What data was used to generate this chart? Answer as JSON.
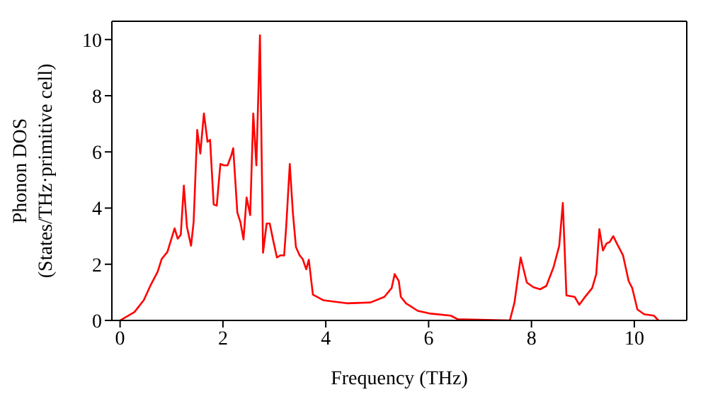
{
  "chart_data": {
    "type": "line",
    "xlabel": "Frequency (THz)",
    "ylabel": "Phonon DOS\n(States/THz·primitive cell)",
    "x": [
      0,
      0.28,
      0.46,
      0.6,
      0.73,
      0.81,
      0.92,
      1.06,
      1.12,
      1.18,
      1.24,
      1.3,
      1.38,
      1.43,
      1.5,
      1.56,
      1.63,
      1.7,
      1.75,
      1.82,
      1.88,
      1.95,
      2.02,
      2.09,
      2.16,
      2.2,
      2.28,
      2.34,
      2.4,
      2.46,
      2.53,
      2.59,
      2.65,
      2.72,
      2.78,
      2.85,
      2.91,
      2.98,
      3.05,
      3.12,
      3.19,
      3.23,
      3.3,
      3.36,
      3.42,
      3.49,
      3.55,
      3.62,
      3.67,
      3.75,
      3.95,
      4.41,
      4.87,
      5.14,
      5.28,
      5.34,
      5.42,
      5.46,
      5.56,
      5.79,
      6.01,
      6.43,
      6.57,
      7.58,
      7.67,
      7.79,
      7.91,
      8.04,
      8.17,
      8.29,
      8.43,
      8.54,
      8.61,
      8.68,
      8.84,
      8.93,
      9.03,
      9.18,
      9.26,
      9.32,
      9.39,
      9.46,
      9.52,
      9.59,
      9.66,
      9.78,
      9.89,
      9.96,
      10.06,
      10.19,
      10.38,
      10.47
    ],
    "series": [
      {
        "color": "#ff0000",
        "values": [
          0,
          0.3,
          0.72,
          1.28,
          1.73,
          2.19,
          2.44,
          3.28,
          2.91,
          3.05,
          4.8,
          3.33,
          2.66,
          3.5,
          6.78,
          5.94,
          7.37,
          6.36,
          6.43,
          4.13,
          4.09,
          5.57,
          5.52,
          5.52,
          5.86,
          6.13,
          3.84,
          3.5,
          2.88,
          4.38,
          3.75,
          7.37,
          5.52,
          10.15,
          2.41,
          3.45,
          3.45,
          2.83,
          2.24,
          2.32,
          2.31,
          3.33,
          5.57,
          3.84,
          2.61,
          2.32,
          2.19,
          1.82,
          2.16,
          0.92,
          0.72,
          0.61,
          0.64,
          0.84,
          1.15,
          1.65,
          1.4,
          0.84,
          0.61,
          0.34,
          0.25,
          0.17,
          0.04,
          0,
          0.64,
          2.24,
          1.35,
          1.18,
          1.11,
          1.23,
          1.9,
          2.66,
          4.18,
          0.89,
          0.84,
          0.56,
          0.81,
          1.15,
          1.65,
          3.25,
          2.49,
          2.74,
          2.79,
          3.0,
          2.74,
          2.32,
          1.4,
          1.15,
          0.39,
          0.22,
          0.17,
          0
        ]
      }
    ],
    "xlim": [
      -0.16,
      11.02
    ],
    "xticks": [
      0,
      2,
      4,
      6,
      8,
      10
    ],
    "ylim": [
      0,
      10.65
    ],
    "yticks": [
      0,
      2,
      4,
      6,
      8,
      10
    ],
    "grid": false,
    "marker": "none",
    "line_style": "solid"
  }
}
